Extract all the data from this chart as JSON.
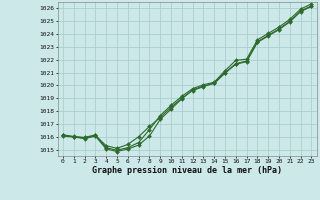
{
  "x": [
    0,
    1,
    2,
    3,
    4,
    5,
    6,
    7,
    8,
    9,
    10,
    11,
    12,
    13,
    14,
    15,
    16,
    17,
    18,
    19,
    20,
    21,
    22,
    23
  ],
  "line1": [
    1016.1,
    1016.0,
    1015.9,
    1016.1,
    1015.3,
    1015.1,
    1015.4,
    1016.0,
    1016.8,
    1017.5,
    1018.3,
    1019.0,
    1019.6,
    1019.9,
    1020.2,
    1021.0,
    1021.7,
    1021.9,
    1023.4,
    1023.9,
    1024.4,
    1025.0,
    1025.8,
    1026.2
  ],
  "line2": [
    1016.15,
    1016.02,
    1015.95,
    1016.15,
    1015.15,
    1014.95,
    1015.15,
    1015.55,
    1016.55,
    1017.65,
    1018.45,
    1019.15,
    1019.75,
    1020.05,
    1020.25,
    1021.15,
    1021.95,
    1022.05,
    1023.55,
    1024.05,
    1024.55,
    1025.15,
    1025.95,
    1026.35
  ],
  "line3": [
    1016.05,
    1015.98,
    1015.85,
    1016.05,
    1015.05,
    1014.85,
    1015.05,
    1015.35,
    1016.05,
    1017.35,
    1018.15,
    1018.95,
    1019.65,
    1019.95,
    1020.15,
    1020.95,
    1021.65,
    1021.85,
    1023.35,
    1023.85,
    1024.35,
    1024.95,
    1025.75,
    1026.15
  ],
  "ylim": [
    1014.5,
    1026.5
  ],
  "yticks": [
    1015,
    1016,
    1017,
    1018,
    1019,
    1020,
    1021,
    1022,
    1023,
    1024,
    1025,
    1026
  ],
  "xticks": [
    0,
    1,
    2,
    3,
    4,
    5,
    6,
    7,
    8,
    9,
    10,
    11,
    12,
    13,
    14,
    15,
    16,
    17,
    18,
    19,
    20,
    21,
    22,
    23
  ],
  "xlabel": "Graphe pression niveau de la mer (hPa)",
  "line_color": "#2d6a2d",
  "bg_color": "#cce8e8",
  "grid_color": "#aacece",
  "marker": "D",
  "marker_size": 2.0,
  "linewidth": 0.8
}
